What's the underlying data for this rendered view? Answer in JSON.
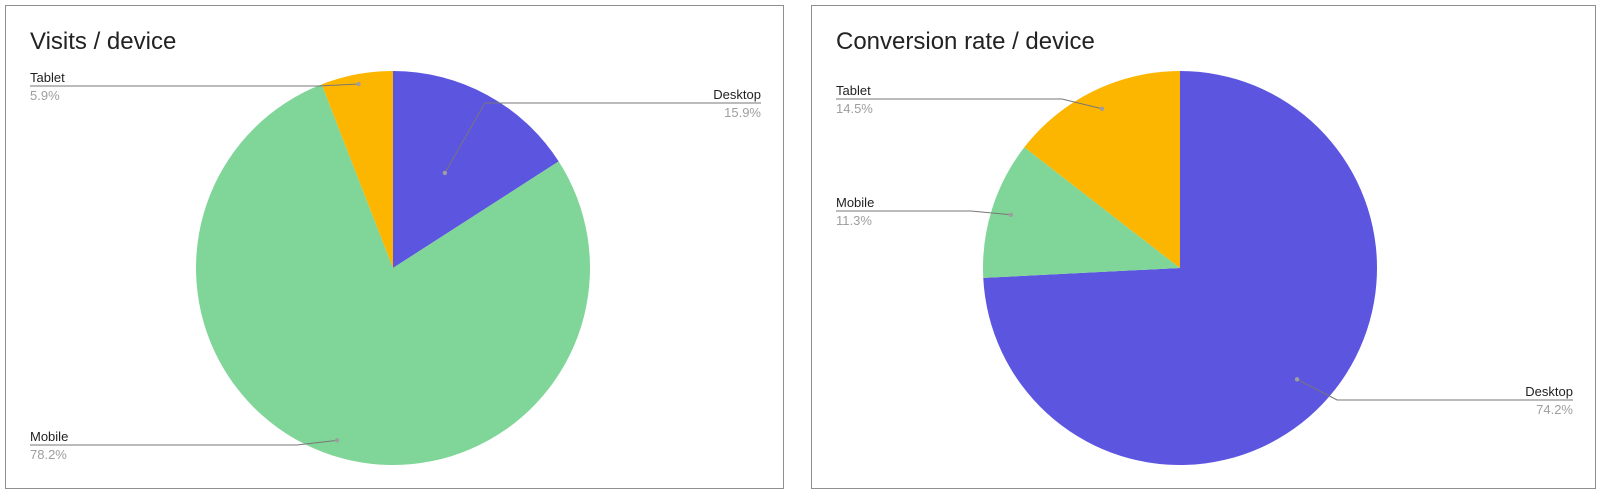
{
  "chart_data": [
    {
      "type": "pie",
      "title": "Visits / device",
      "categories": [
        "Desktop",
        "Mobile",
        "Tablet"
      ],
      "values": [
        15.9,
        78.2,
        5.9
      ],
      "value_labels": [
        "15.9%",
        "78.2%",
        "5.9%"
      ],
      "colors": [
        "#5b55e0",
        "#80d598",
        "#fdb600"
      ],
      "start": "12 o'clock",
      "direction": "clockwise",
      "legend": "none"
    },
    {
      "type": "pie",
      "title": "Conversion rate / device",
      "categories": [
        "Desktop",
        "Mobile",
        "Tablet"
      ],
      "values": [
        74.2,
        11.3,
        14.5
      ],
      "value_labels": [
        "74.2%",
        "11.3%",
        "14.5%"
      ],
      "colors": [
        "#5b55e0",
        "#80d598",
        "#fdb600"
      ],
      "start": "12 o'clock",
      "direction": "clockwise",
      "legend": "none"
    }
  ]
}
